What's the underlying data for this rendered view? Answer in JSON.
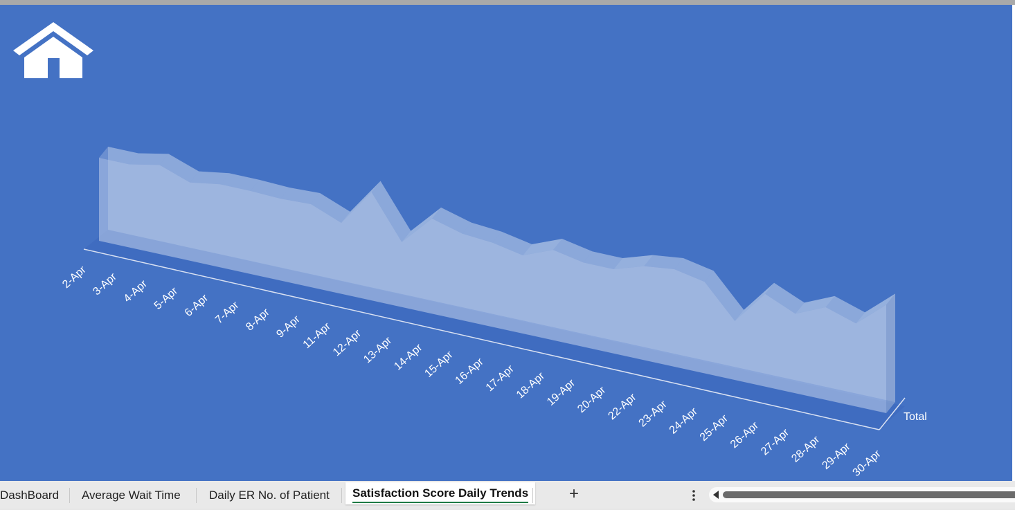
{
  "chart_data": {
    "type": "area",
    "title": "",
    "xlabel": "",
    "ylabel": "",
    "categories": [
      "2-Apr",
      "3-Apr",
      "4-Apr",
      "5-Apr",
      "6-Apr",
      "7-Apr",
      "8-Apr",
      "9-Apr",
      "11-Apr",
      "12-Apr",
      "13-Apr",
      "14-Apr",
      "15-Apr",
      "16-Apr",
      "17-Apr",
      "18-Apr",
      "19-Apr",
      "20-Apr",
      "22-Apr",
      "23-Apr",
      "24-Apr",
      "25-Apr",
      "26-Apr",
      "27-Apr",
      "28-Apr",
      "29-Apr",
      "30-Apr"
    ],
    "series": [
      {
        "name": "Total",
        "values": [
          6.9,
          6.9,
          7.4,
          6.5,
          6.9,
          6.9,
          6.8,
          6.9,
          5.9,
          9.0,
          5.4,
          7.9,
          7.2,
          7.0,
          6.5,
          7.5,
          7.0,
          7.0,
          7.8,
          8.1,
          7.6,
          4.9,
          7.7,
          6.6,
          7.7,
          6.9,
          9.0
        ]
      }
    ],
    "ylim": [
      0,
      10
    ],
    "grid": false,
    "legend": "none",
    "style": "3d",
    "colors": {
      "background": "#4472c4",
      "series_fill": "#b4c7e7",
      "axis": "#d9e1f2",
      "text": "#ffffff"
    }
  },
  "home_button": {
    "icon": "home-icon"
  },
  "sheet_tabs": [
    {
      "label": "DashBoard",
      "active": false
    },
    {
      "label": "Average Wait Time",
      "active": false
    },
    {
      "label": "Daily ER No. of Patient",
      "active": false
    },
    {
      "label": "Satisfaction Score Daily Trends",
      "active": true
    }
  ],
  "add_sheet_label": "+",
  "icons": [
    "home-icon",
    "more-options-icon",
    "scroll-left-icon"
  ]
}
